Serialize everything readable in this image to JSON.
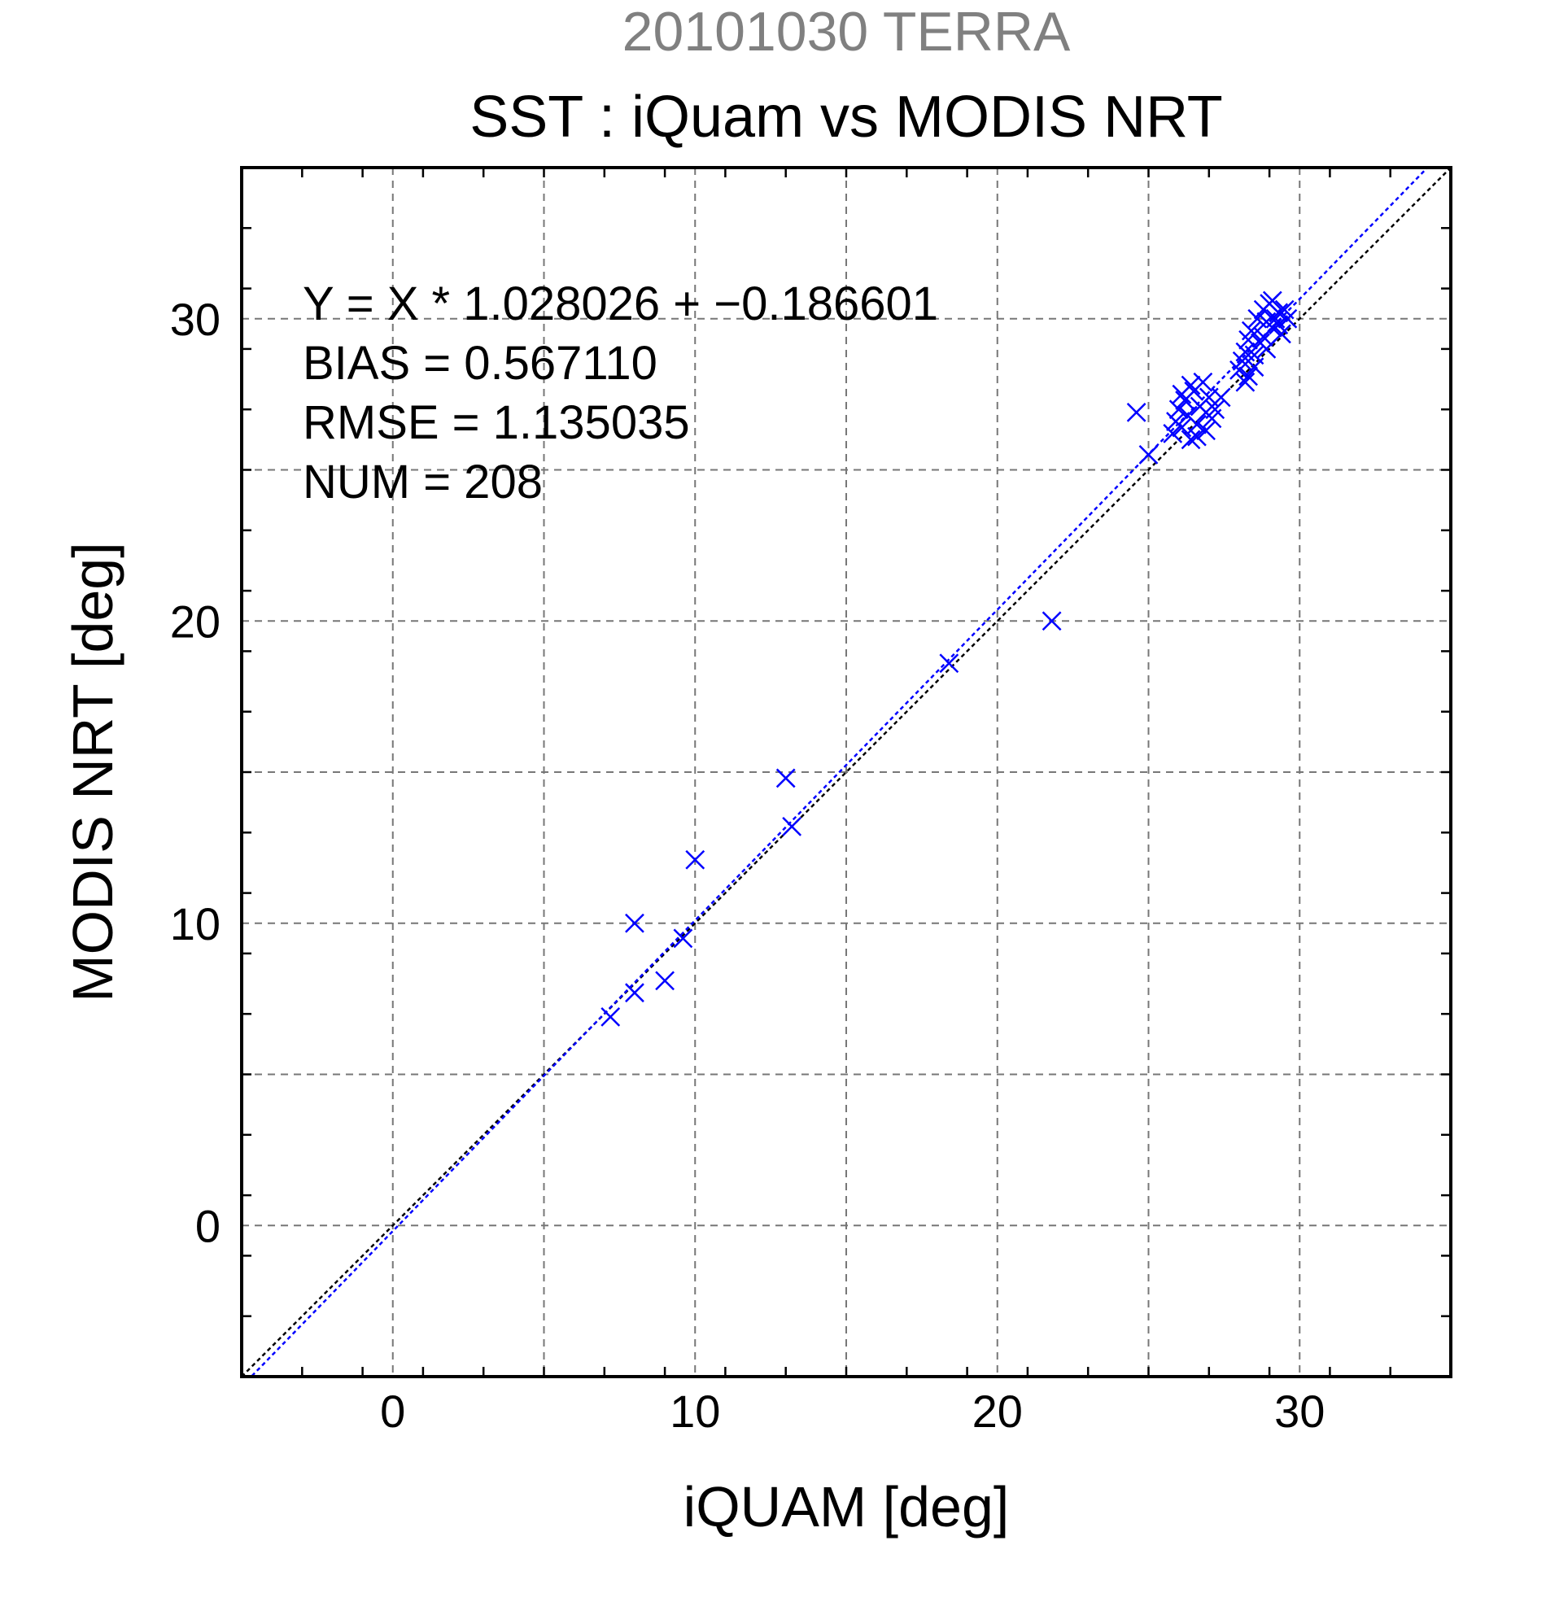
{
  "chart_data": {
    "type": "scatter",
    "supertitle": "20101030 TERRA",
    "title": "SST : iQuam vs MODIS NRT",
    "xlabel": "iQUAM [deg]",
    "ylabel": "MODIS NRT [deg]",
    "xlim": [
      -5,
      35
    ],
    "ylim": [
      -5,
      35
    ],
    "xticks": [
      0,
      10,
      20,
      30
    ],
    "yticks": [
      0,
      10,
      20,
      30
    ],
    "grid": true,
    "colors": {
      "supertitle": "#808080",
      "points": "#0000ff",
      "fit_line": "#0000ff",
      "identity_line": "#000000"
    },
    "stats": [
      "Y = X * 1.028026 + −0.186601",
      "BIAS = 0.567110",
      "RMSE = 1.135035",
      "NUM = 208"
    ],
    "fit": {
      "slope": 1.028026,
      "intercept": -0.186601
    },
    "marker": "x",
    "series": [
      {
        "points": [
          [
            7.2,
            6.9
          ],
          [
            8.0,
            10.0
          ],
          [
            8.0,
            7.7
          ],
          [
            9.0,
            8.1
          ],
          [
            9.6,
            9.5
          ],
          [
            10.0,
            12.1
          ],
          [
            13.0,
            14.8
          ],
          [
            13.2,
            13.2
          ],
          [
            18.4,
            18.6
          ],
          [
            21.8,
            20.0
          ],
          [
            24.6,
            26.9
          ],
          [
            25.0,
            25.5
          ],
          [
            25.8,
            26.2
          ],
          [
            25.9,
            26.6
          ],
          [
            26.0,
            27.0
          ],
          [
            26.1,
            26.4
          ],
          [
            26.2,
            27.3
          ],
          [
            26.3,
            26.8
          ],
          [
            26.4,
            26.0
          ],
          [
            26.5,
            27.6
          ],
          [
            26.6,
            26.5
          ],
          [
            26.7,
            27.1
          ],
          [
            26.8,
            27.9
          ],
          [
            26.9,
            26.3
          ],
          [
            27.0,
            27.4
          ],
          [
            27.1,
            26.7
          ],
          [
            27.2,
            27.0
          ],
          [
            27.4,
            27.4
          ],
          [
            26.1,
            27.5
          ],
          [
            26.4,
            27.8
          ],
          [
            26.6,
            26.1
          ],
          [
            26.9,
            26.9
          ],
          [
            28.0,
            28.3
          ],
          [
            28.1,
            28.6
          ],
          [
            28.2,
            28.9
          ],
          [
            28.3,
            28.1
          ],
          [
            28.3,
            29.3
          ],
          [
            28.4,
            29.6
          ],
          [
            28.5,
            28.8
          ],
          [
            28.6,
            30.0
          ],
          [
            28.7,
            29.2
          ],
          [
            28.8,
            30.3
          ],
          [
            28.8,
            29.4
          ],
          [
            28.9,
            29.9
          ],
          [
            29.0,
            30.5
          ],
          [
            29.1,
            29.7
          ],
          [
            29.2,
            30.0
          ],
          [
            29.3,
            30.2
          ],
          [
            29.4,
            29.5
          ],
          [
            29.5,
            30.3
          ],
          [
            29.6,
            30.0
          ],
          [
            28.5,
            28.4
          ],
          [
            28.9,
            29.0
          ],
          [
            29.1,
            30.6
          ],
          [
            28.2,
            27.9
          ],
          [
            29.3,
            29.8
          ]
        ]
      }
    ]
  }
}
